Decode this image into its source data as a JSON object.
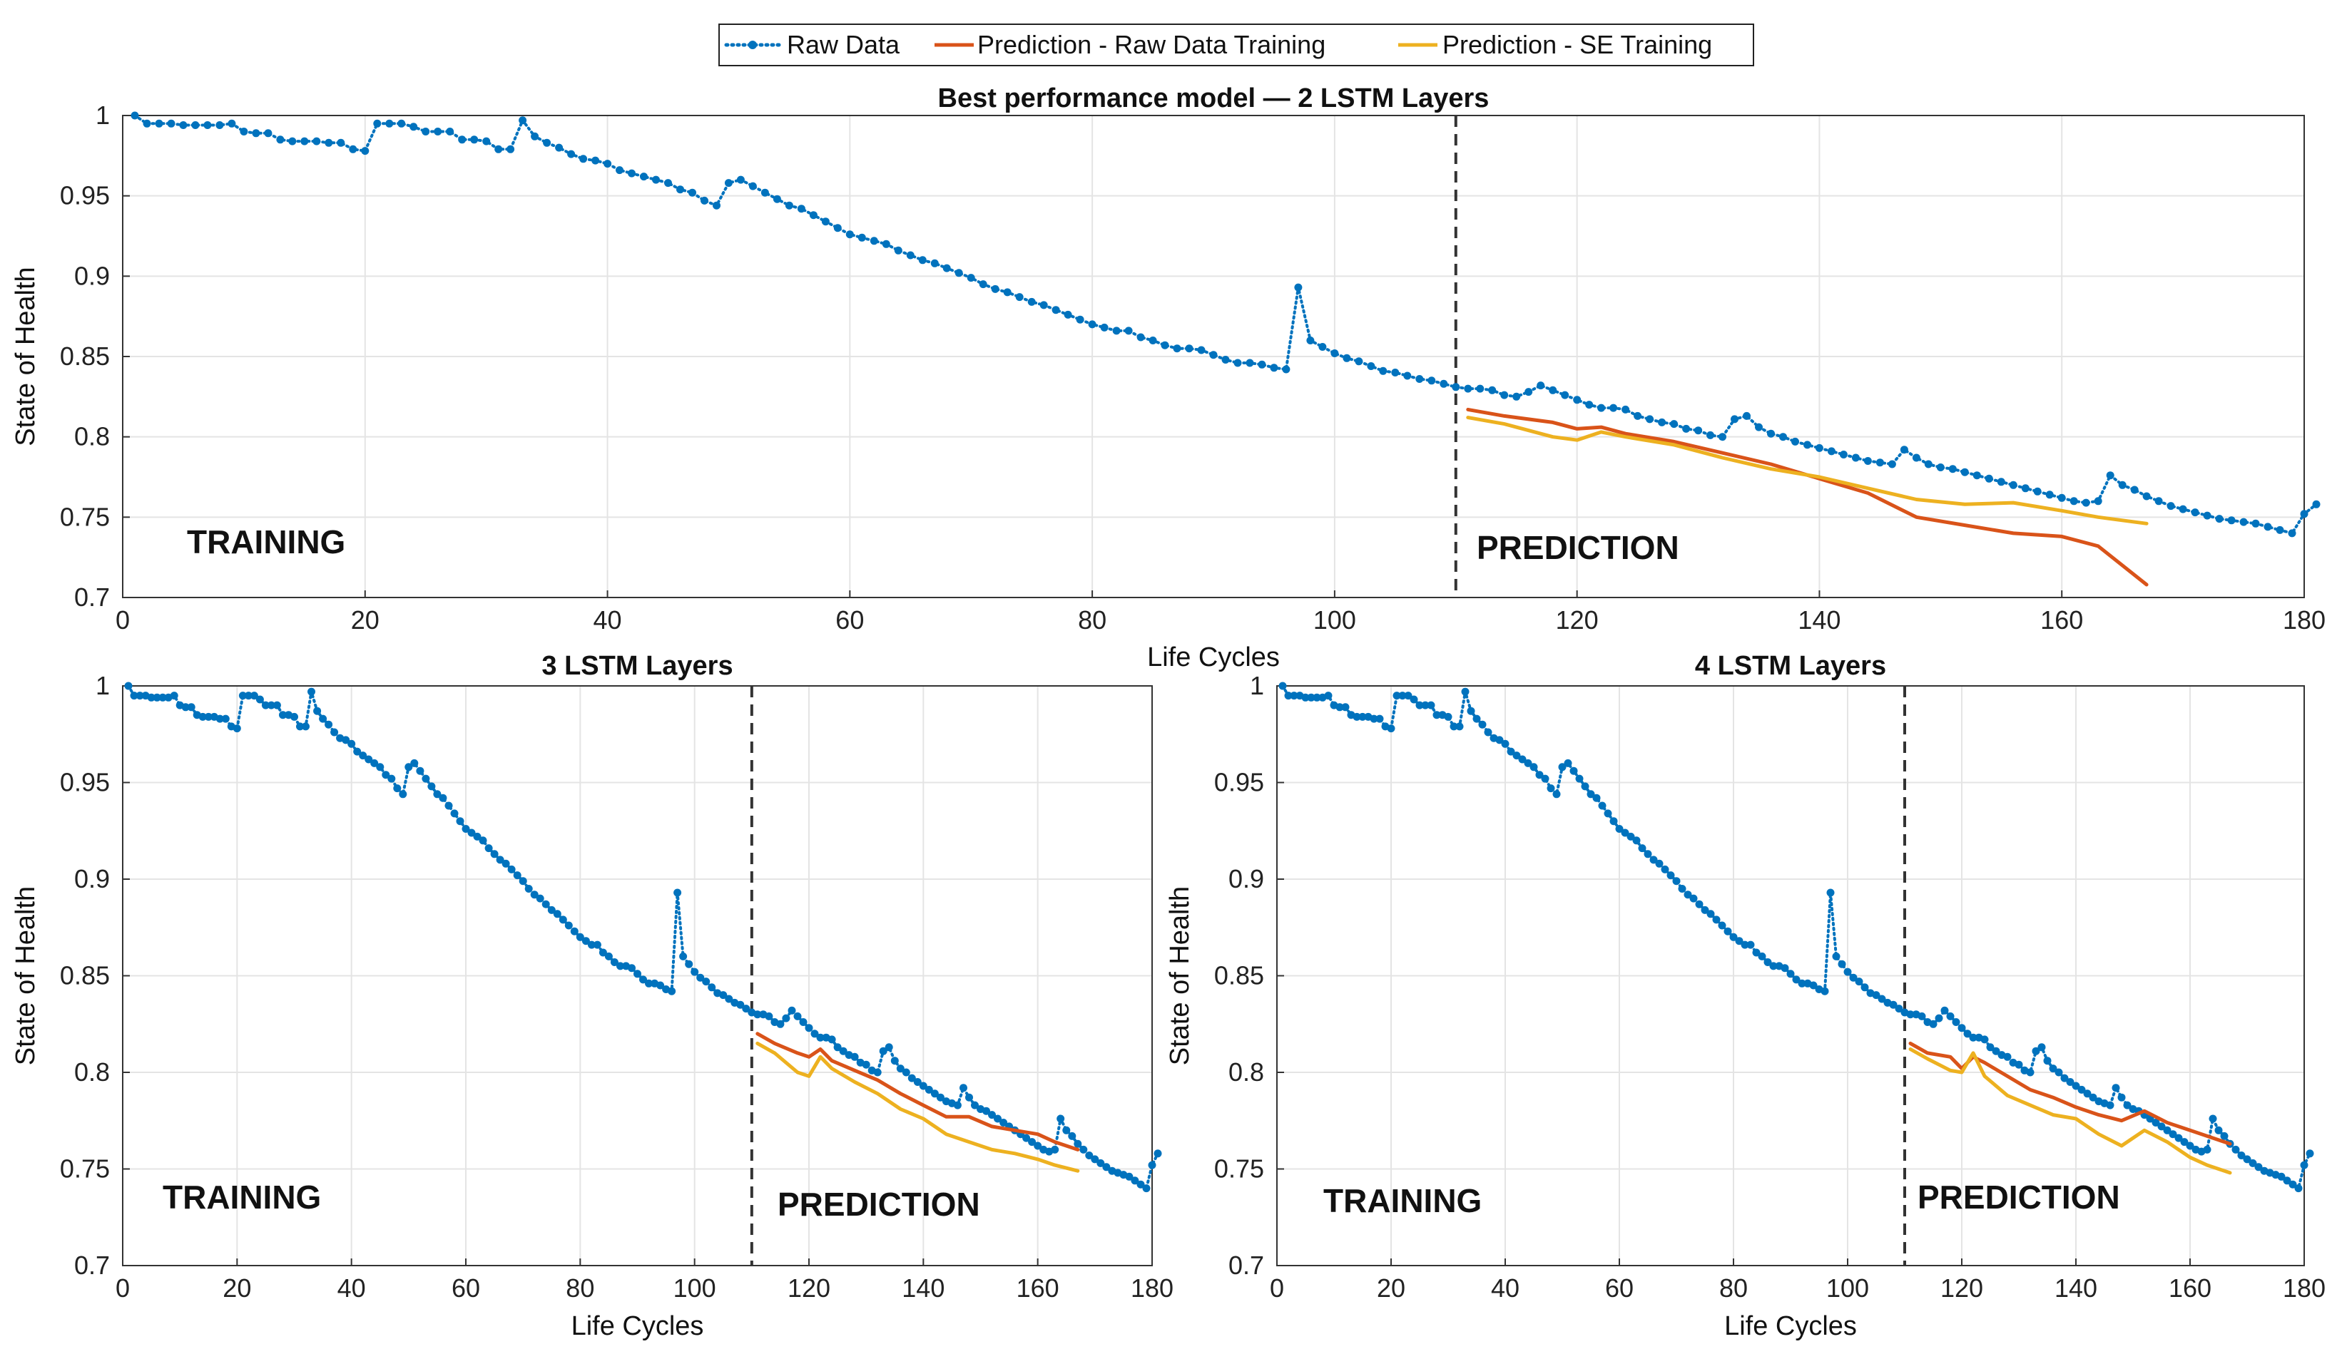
{
  "legend": {
    "entries": [
      {
        "label": "Raw Data",
        "color": "#0072BD",
        "style": "dotted-markers"
      },
      {
        "label": "Prediction - Raw Data Training",
        "color": "#D95319",
        "style": "solid"
      },
      {
        "label": "Prediction - SE Training",
        "color": "#EDB120",
        "style": "solid"
      }
    ]
  },
  "chart_data": [
    {
      "type": "line",
      "title": "Best performance model — 2 LSTM Layers",
      "xlabel": "Life Cycles",
      "ylabel": "State of Health",
      "xlim": [
        0,
        180
      ],
      "ylim": [
        0.7,
        1.0
      ],
      "xticks": [
        "0",
        "20",
        "40",
        "60",
        "80",
        "100",
        "120",
        "140",
        "160",
        "180"
      ],
      "yticks": [
        "0.7",
        "0.75",
        "0.8",
        "0.85",
        "0.9",
        "0.95",
        "1"
      ],
      "grid": true,
      "split_x": 110,
      "annotations": {
        "training": "TRAINING",
        "prediction": "PREDICTION"
      },
      "series": [
        {
          "name": "Raw Data",
          "x_start": 1,
          "values": [
            1.0,
            0.995,
            0.995,
            0.995,
            0.994,
            0.994,
            0.994,
            0.994,
            0.995,
            0.99,
            0.989,
            0.989,
            0.985,
            0.984,
            0.984,
            0.984,
            0.983,
            0.983,
            0.979,
            0.978,
            0.995,
            0.995,
            0.995,
            0.993,
            0.99,
            0.99,
            0.99,
            0.985,
            0.985,
            0.984,
            0.979,
            0.979,
            0.997,
            0.987,
            0.983,
            0.98,
            0.976,
            0.973,
            0.972,
            0.97,
            0.966,
            0.964,
            0.962,
            0.96,
            0.958,
            0.954,
            0.952,
            0.947,
            0.944,
            0.958,
            0.96,
            0.956,
            0.952,
            0.948,
            0.944,
            0.942,
            0.938,
            0.934,
            0.93,
            0.926,
            0.924,
            0.922,
            0.92,
            0.916,
            0.913,
            0.91,
            0.908,
            0.905,
            0.902,
            0.899,
            0.895,
            0.892,
            0.89,
            0.887,
            0.884,
            0.882,
            0.879,
            0.876,
            0.873,
            0.87,
            0.868,
            0.866,
            0.866,
            0.862,
            0.86,
            0.857,
            0.855,
            0.855,
            0.854,
            0.851,
            0.848,
            0.846,
            0.846,
            0.845,
            0.843,
            0.842,
            0.893,
            0.86,
            0.856,
            0.852,
            0.849,
            0.847,
            0.844,
            0.841,
            0.84,
            0.838,
            0.836,
            0.835,
            0.833,
            0.831,
            0.83,
            0.83,
            0.829,
            0.826,
            0.825,
            0.828,
            0.832,
            0.829,
            0.826,
            0.823,
            0.82,
            0.818,
            0.818,
            0.817,
            0.813,
            0.811,
            0.809,
            0.808,
            0.805,
            0.804,
            0.801,
            0.8,
            0.811,
            0.813,
            0.806,
            0.802,
            0.8,
            0.797,
            0.795,
            0.793,
            0.791,
            0.789,
            0.787,
            0.785,
            0.784,
            0.783,
            0.792,
            0.787,
            0.783,
            0.781,
            0.78,
            0.778,
            0.776,
            0.774,
            0.772,
            0.77,
            0.768,
            0.766,
            0.764,
            0.762,
            0.76,
            0.759,
            0.76,
            0.776,
            0.77,
            0.767,
            0.763,
            0.76,
            0.757,
            0.755,
            0.753,
            0.751,
            0.749,
            0.748,
            0.747,
            0.746,
            0.744,
            0.742,
            0.74,
            0.752,
            0.758
          ]
        },
        {
          "name": "Prediction - Raw Data Training",
          "x": [
            111,
            114,
            118,
            120,
            122,
            124,
            128,
            132,
            136,
            140,
            144,
            148,
            152,
            156,
            160,
            163,
            167
          ],
          "values": [
            0.817,
            0.813,
            0.809,
            0.805,
            0.806,
            0.802,
            0.797,
            0.79,
            0.783,
            0.774,
            0.765,
            0.75,
            0.745,
            0.74,
            0.738,
            0.732,
            0.708
          ]
        },
        {
          "name": "Prediction - SE Training",
          "x": [
            111,
            114,
            118,
            120,
            122,
            124,
            128,
            132,
            136,
            140,
            144,
            148,
            152,
            156,
            160,
            163,
            167
          ],
          "values": [
            0.812,
            0.808,
            0.8,
            0.798,
            0.803,
            0.8,
            0.795,
            0.787,
            0.78,
            0.775,
            0.768,
            0.761,
            0.758,
            0.759,
            0.754,
            0.75,
            0.746
          ]
        }
      ]
    },
    {
      "type": "line",
      "title": "3 LSTM Layers",
      "xlabel": "Life Cycles",
      "ylabel": "State of Health",
      "xlim": [
        0,
        180
      ],
      "ylim": [
        0.7,
        1.0
      ],
      "xticks": [
        "0",
        "20",
        "40",
        "60",
        "80",
        "100",
        "120",
        "140",
        "160",
        "180"
      ],
      "yticks": [
        "0.7",
        "0.75",
        "0.8",
        "0.85",
        "0.9",
        "0.95",
        "1"
      ],
      "grid": true,
      "split_x": 110,
      "annotations": {
        "training": "TRAINING",
        "prediction": "PREDICTION"
      },
      "series": [
        {
          "name": "Raw Data",
          "x_start": 1,
          "values": [
            1.0,
            0.995,
            0.995,
            0.995,
            0.994,
            0.994,
            0.994,
            0.994,
            0.995,
            0.99,
            0.989,
            0.989,
            0.985,
            0.984,
            0.984,
            0.984,
            0.983,
            0.983,
            0.979,
            0.978,
            0.995,
            0.995,
            0.995,
            0.993,
            0.99,
            0.99,
            0.99,
            0.985,
            0.985,
            0.984,
            0.979,
            0.979,
            0.997,
            0.987,
            0.983,
            0.98,
            0.976,
            0.973,
            0.972,
            0.97,
            0.966,
            0.964,
            0.962,
            0.96,
            0.958,
            0.954,
            0.952,
            0.947,
            0.944,
            0.958,
            0.96,
            0.956,
            0.952,
            0.948,
            0.944,
            0.942,
            0.938,
            0.934,
            0.93,
            0.926,
            0.924,
            0.922,
            0.92,
            0.916,
            0.913,
            0.91,
            0.908,
            0.905,
            0.902,
            0.899,
            0.895,
            0.892,
            0.89,
            0.887,
            0.884,
            0.882,
            0.879,
            0.876,
            0.873,
            0.87,
            0.868,
            0.866,
            0.866,
            0.862,
            0.86,
            0.857,
            0.855,
            0.855,
            0.854,
            0.851,
            0.848,
            0.846,
            0.846,
            0.845,
            0.843,
            0.842,
            0.893,
            0.86,
            0.856,
            0.852,
            0.849,
            0.847,
            0.844,
            0.841,
            0.84,
            0.838,
            0.836,
            0.835,
            0.833,
            0.831,
            0.83,
            0.83,
            0.829,
            0.826,
            0.825,
            0.828,
            0.832,
            0.829,
            0.826,
            0.823,
            0.82,
            0.818,
            0.818,
            0.817,
            0.813,
            0.811,
            0.809,
            0.808,
            0.805,
            0.804,
            0.801,
            0.8,
            0.811,
            0.813,
            0.806,
            0.802,
            0.8,
            0.797,
            0.795,
            0.793,
            0.791,
            0.789,
            0.787,
            0.785,
            0.784,
            0.783,
            0.792,
            0.787,
            0.783,
            0.781,
            0.78,
            0.778,
            0.776,
            0.774,
            0.772,
            0.77,
            0.768,
            0.766,
            0.764,
            0.762,
            0.76,
            0.759,
            0.76,
            0.776,
            0.77,
            0.767,
            0.763,
            0.76,
            0.757,
            0.755,
            0.753,
            0.751,
            0.749,
            0.748,
            0.747,
            0.746,
            0.744,
            0.742,
            0.74,
            0.752,
            0.758
          ]
        },
        {
          "name": "Prediction - Raw Data Training",
          "x": [
            111,
            114,
            118,
            120,
            122,
            124,
            128,
            132,
            136,
            140,
            144,
            148,
            152,
            156,
            160,
            163,
            167
          ],
          "values": [
            0.82,
            0.815,
            0.81,
            0.808,
            0.812,
            0.806,
            0.801,
            0.796,
            0.789,
            0.783,
            0.777,
            0.777,
            0.772,
            0.77,
            0.768,
            0.764,
            0.76
          ]
        },
        {
          "name": "Prediction - SE Training",
          "x": [
            111,
            114,
            118,
            120,
            122,
            124,
            128,
            132,
            136,
            140,
            144,
            148,
            152,
            156,
            160,
            163,
            167
          ],
          "values": [
            0.815,
            0.81,
            0.8,
            0.798,
            0.808,
            0.802,
            0.795,
            0.789,
            0.781,
            0.776,
            0.768,
            0.764,
            0.76,
            0.758,
            0.755,
            0.752,
            0.749
          ]
        }
      ]
    },
    {
      "type": "line",
      "title": "4 LSTM Layers",
      "xlabel": "Life Cycles",
      "ylabel": "State of Health",
      "xlim": [
        0,
        180
      ],
      "ylim": [
        0.7,
        1.0
      ],
      "xticks": [
        "0",
        "20",
        "40",
        "60",
        "80",
        "100",
        "120",
        "140",
        "160",
        "180"
      ],
      "yticks": [
        "0.7",
        "0.75",
        "0.8",
        "0.85",
        "0.9",
        "0.95",
        "1"
      ],
      "grid": true,
      "split_x": 110,
      "annotations": {
        "training": "TRAINING",
        "prediction": "PREDICTION"
      },
      "series": [
        {
          "name": "Raw Data",
          "x_start": 1,
          "values": [
            1.0,
            0.995,
            0.995,
            0.995,
            0.994,
            0.994,
            0.994,
            0.994,
            0.995,
            0.99,
            0.989,
            0.989,
            0.985,
            0.984,
            0.984,
            0.984,
            0.983,
            0.983,
            0.979,
            0.978,
            0.995,
            0.995,
            0.995,
            0.993,
            0.99,
            0.99,
            0.99,
            0.985,
            0.985,
            0.984,
            0.979,
            0.979,
            0.997,
            0.987,
            0.983,
            0.98,
            0.976,
            0.973,
            0.972,
            0.97,
            0.966,
            0.964,
            0.962,
            0.96,
            0.958,
            0.954,
            0.952,
            0.947,
            0.944,
            0.958,
            0.96,
            0.956,
            0.952,
            0.948,
            0.944,
            0.942,
            0.938,
            0.934,
            0.93,
            0.926,
            0.924,
            0.922,
            0.92,
            0.916,
            0.913,
            0.91,
            0.908,
            0.905,
            0.902,
            0.899,
            0.895,
            0.892,
            0.89,
            0.887,
            0.884,
            0.882,
            0.879,
            0.876,
            0.873,
            0.87,
            0.868,
            0.866,
            0.866,
            0.862,
            0.86,
            0.857,
            0.855,
            0.855,
            0.854,
            0.851,
            0.848,
            0.846,
            0.846,
            0.845,
            0.843,
            0.842,
            0.893,
            0.86,
            0.856,
            0.852,
            0.849,
            0.847,
            0.844,
            0.841,
            0.84,
            0.838,
            0.836,
            0.835,
            0.833,
            0.831,
            0.83,
            0.83,
            0.829,
            0.826,
            0.825,
            0.828,
            0.832,
            0.829,
            0.826,
            0.823,
            0.82,
            0.818,
            0.818,
            0.817,
            0.813,
            0.811,
            0.809,
            0.808,
            0.805,
            0.804,
            0.801,
            0.8,
            0.811,
            0.813,
            0.806,
            0.802,
            0.8,
            0.797,
            0.795,
            0.793,
            0.791,
            0.789,
            0.787,
            0.785,
            0.784,
            0.783,
            0.792,
            0.787,
            0.783,
            0.781,
            0.78,
            0.778,
            0.776,
            0.774,
            0.772,
            0.77,
            0.768,
            0.766,
            0.764,
            0.762,
            0.76,
            0.759,
            0.76,
            0.776,
            0.77,
            0.767,
            0.763,
            0.76,
            0.757,
            0.755,
            0.753,
            0.751,
            0.749,
            0.748,
            0.747,
            0.746,
            0.744,
            0.742,
            0.74,
            0.752,
            0.758
          ]
        },
        {
          "name": "Prediction - Raw Data Training",
          "x": [
            111,
            114,
            118,
            120,
            122,
            124,
            128,
            132,
            136,
            140,
            144,
            148,
            152,
            156,
            160,
            163,
            167
          ],
          "values": [
            0.815,
            0.81,
            0.808,
            0.802,
            0.808,
            0.805,
            0.798,
            0.791,
            0.787,
            0.782,
            0.778,
            0.775,
            0.78,
            0.774,
            0.77,
            0.767,
            0.763
          ]
        },
        {
          "name": "Prediction - SE Training",
          "x": [
            111,
            114,
            118,
            120,
            122,
            124,
            128,
            132,
            136,
            140,
            144,
            148,
            152,
            156,
            160,
            163,
            167
          ],
          "values": [
            0.812,
            0.807,
            0.801,
            0.8,
            0.81,
            0.798,
            0.788,
            0.783,
            0.778,
            0.776,
            0.768,
            0.762,
            0.77,
            0.764,
            0.756,
            0.752,
            0.748
          ]
        }
      ]
    }
  ]
}
